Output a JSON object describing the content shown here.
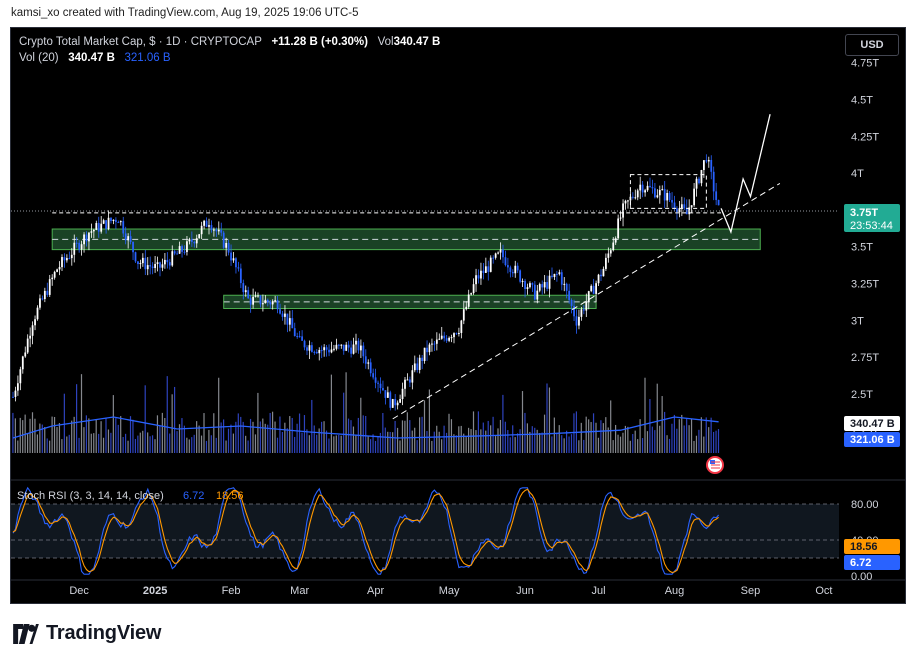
{
  "attribution": "kamsi_xo created with TradingView.com, Aug 19, 2025 19:06 UTC-5",
  "legend": {
    "symbol": "Crypto Total Market Cap, $ · 1D · CRYPTOCAP",
    "change": "+11.28 B (+0.30%)",
    "vol_label": "Vol",
    "vol_value": "340.47 B",
    "vol20_label": "Vol (20)",
    "vol20_value": "340.47 B",
    "vol20_ma": "321.06 B"
  },
  "currency_button": "USD",
  "price_badge": {
    "price": "3.75T",
    "countdown": "23:53:44",
    "color": "#22ab94"
  },
  "volume_badges": {
    "volume": "340.47 B",
    "ma": "321.06 B"
  },
  "rsi": {
    "label": "Stoch RSI (3, 3, 14, 14, close)",
    "k": "6.72",
    "d": "18.56",
    "k_color": "#2962ff",
    "d_color": "#ff9800",
    "axis_labels": [
      "80.00",
      "40.00",
      "0.00"
    ]
  },
  "brand": "TradingView",
  "colors": {
    "up": "#ffffff",
    "down": "#2962ff",
    "zone": "#1e4d2b",
    "volume_ma": "#2962ff"
  },
  "chart_data": {
    "type": "candlestick",
    "title": "Crypto Total Market Cap, $ · 1D · CRYPTOCAP",
    "y_unit": "T",
    "y_ticks": [
      "4.75T",
      "4.5T",
      "4.25T",
      "4T",
      "3.75T",
      "3.5T",
      "3.25T",
      "3T",
      "2.75T",
      "2.5T",
      "2.25T"
    ],
    "x_ticks": [
      "Dec",
      "2025",
      "Feb",
      "Mar",
      "Apr",
      "May",
      "Jun",
      "Jul",
      "Aug",
      "Sep",
      "Oct"
    ],
    "ylim": [
      2.2,
      4.85
    ],
    "zones": [
      {
        "from": "Nov 20",
        "to": "Sep 05",
        "low": 3.48,
        "high": 3.62
      },
      {
        "from": "Jan 29",
        "to": "Jun 30",
        "low": 3.08,
        "high": 3.17
      }
    ],
    "resistance": {
      "value": 3.73,
      "from": "Nov 20",
      "to": "Aug 20"
    },
    "trendline": {
      "from": [
        "Apr 08",
        2.33
      ],
      "to": [
        "Sep 13",
        3.93
      ]
    },
    "projection": [
      [
        "Aug 20",
        3.76
      ],
      [
        "Aug 24",
        3.6
      ],
      [
        "Aug 29",
        3.96
      ],
      [
        "Sep 01",
        3.84
      ],
      [
        "Sep 09",
        4.4
      ]
    ],
    "close_path": [
      [
        "Nov 04",
        2.48
      ],
      [
        "Nov 12",
        3.0
      ],
      [
        "Nov 22",
        3.35
      ],
      [
        "Dec 05",
        3.6
      ],
      [
        "Dec 17",
        3.7
      ],
      [
        "Dec 25",
        3.4
      ],
      [
        "Jan 02",
        3.35
      ],
      [
        "Jan 14",
        3.5
      ],
      [
        "Jan 23",
        3.68
      ],
      [
        "Jan 31",
        3.48
      ],
      [
        "Feb 08",
        3.14
      ],
      [
        "Feb 20",
        3.12
      ],
      [
        "Mar 01",
        2.85
      ],
      [
        "Mar 10",
        2.8
      ],
      [
        "Mar 25",
        2.82
      ],
      [
        "Apr 08",
        2.42
      ],
      [
        "Apr 22",
        2.8
      ],
      [
        "May 05",
        2.95
      ],
      [
        "May 12",
        3.28
      ],
      [
        "May 22",
        3.45
      ],
      [
        "Jun 05",
        3.18
      ],
      [
        "Jun 15",
        3.32
      ],
      [
        "Jun 22",
        3.0
      ],
      [
        "Jul 03",
        3.35
      ],
      [
        "Jul 11",
        3.75
      ],
      [
        "Jul 18",
        3.92
      ],
      [
        "Jul 28",
        3.85
      ],
      [
        "Aug 06",
        3.72
      ],
      [
        "Aug 14",
        4.12
      ],
      [
        "Aug 19",
        3.75
      ]
    ],
    "volume_ma_path": [
      [
        "Nov 04",
        0.25
      ],
      [
        "Nov 20",
        0.45
      ],
      [
        "Dec 15",
        0.6
      ],
      [
        "Jan 10",
        0.4
      ],
      [
        "Feb 05",
        0.45
      ],
      [
        "Mar 05",
        0.35
      ],
      [
        "Apr 10",
        0.25
      ],
      [
        "May 10",
        0.28
      ],
      [
        "Jun 10",
        0.32
      ],
      [
        "Jul 10",
        0.38
      ],
      [
        "Aug 01",
        0.6
      ],
      [
        "Aug 19",
        0.52
      ]
    ],
    "stoch_k_last": 6.72,
    "stoch_d_last": 18.56
  }
}
